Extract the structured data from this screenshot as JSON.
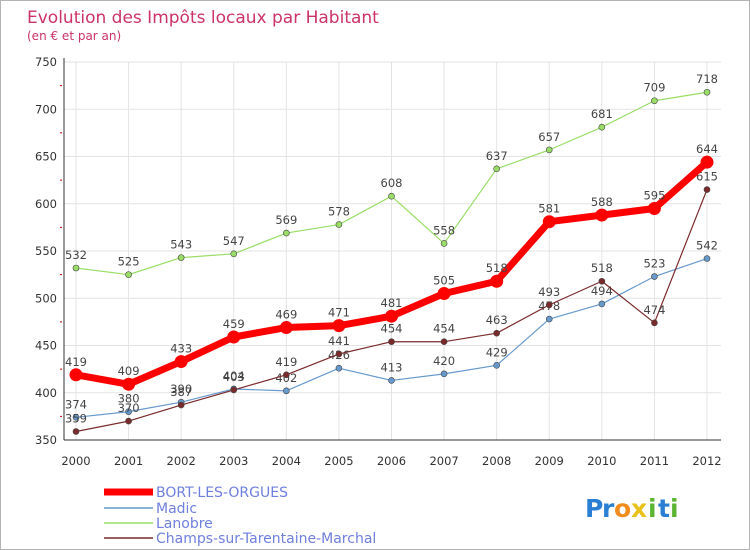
{
  "chart_data": {
    "type": "line",
    "title": "Evolution des Impôts locaux par Habitant",
    "subtitle": "(en € et par an)",
    "xlabel": "",
    "ylabel": "",
    "categories": [
      "2000",
      "2001",
      "2002",
      "2003",
      "2004",
      "2005",
      "2006",
      "2007",
      "2008",
      "2009",
      "2010",
      "2011",
      "2012"
    ],
    "ylim": [
      350,
      750
    ],
    "yticks": [
      350,
      400,
      450,
      500,
      550,
      600,
      650,
      700,
      750
    ],
    "grid": true,
    "legend_position": "bottom-left",
    "series": [
      {
        "name": "BORT-LES-ORGUES",
        "color": "#ff0000",
        "values": [
          419,
          409,
          433,
          459,
          469,
          471,
          481,
          505,
          518,
          581,
          588,
          595,
          644
        ],
        "labels": [
          "419",
          "409",
          "433",
          "459",
          "469",
          "471",
          "481",
          "505",
          "518",
          "581",
          "588",
          "595",
          "644"
        ]
      },
      {
        "name": "Madic",
        "color": "#6699cc",
        "values": [
          374,
          380,
          390,
          404,
          402,
          426,
          413,
          420,
          429,
          478,
          494,
          523,
          542
        ],
        "labels": [
          "374",
          "380",
          "390",
          "404",
          "402",
          "426",
          "413",
          "420",
          "429",
          "478",
          "494",
          "523",
          "542"
        ]
      },
      {
        "name": "Lanobre",
        "color": "#99dd66",
        "values": [
          532,
          525,
          543,
          547,
          569,
          578,
          608,
          558,
          637,
          657,
          681,
          709,
          718
        ],
        "labels": [
          "532",
          "525",
          "543",
          "547",
          "569",
          "578",
          "608",
          "558",
          "637",
          "657",
          "681",
          "709",
          "718"
        ]
      },
      {
        "name": "Champs-sur-Tarentaine-Marchal",
        "color": "#7a2a2a",
        "values": [
          359,
          370,
          387,
          403,
          419,
          441,
          454,
          454,
          463,
          493,
          518,
          474,
          615
        ],
        "labels": [
          "359",
          "370",
          "387",
          "403",
          "419",
          "441",
          "454",
          "454",
          "463",
          "493",
          "518",
          "474",
          "615"
        ]
      }
    ]
  },
  "branding": {
    "text": "Proxiti",
    "letters": [
      "P",
      "r",
      "o",
      "x",
      "i",
      "t",
      "i"
    ],
    "letter_colors": [
      "#2a7fd4",
      "#2a7fd4",
      "#f28c1e",
      "#e8c21a",
      "#5bb532",
      "#2a7fd4",
      "#5bb532"
    ]
  }
}
